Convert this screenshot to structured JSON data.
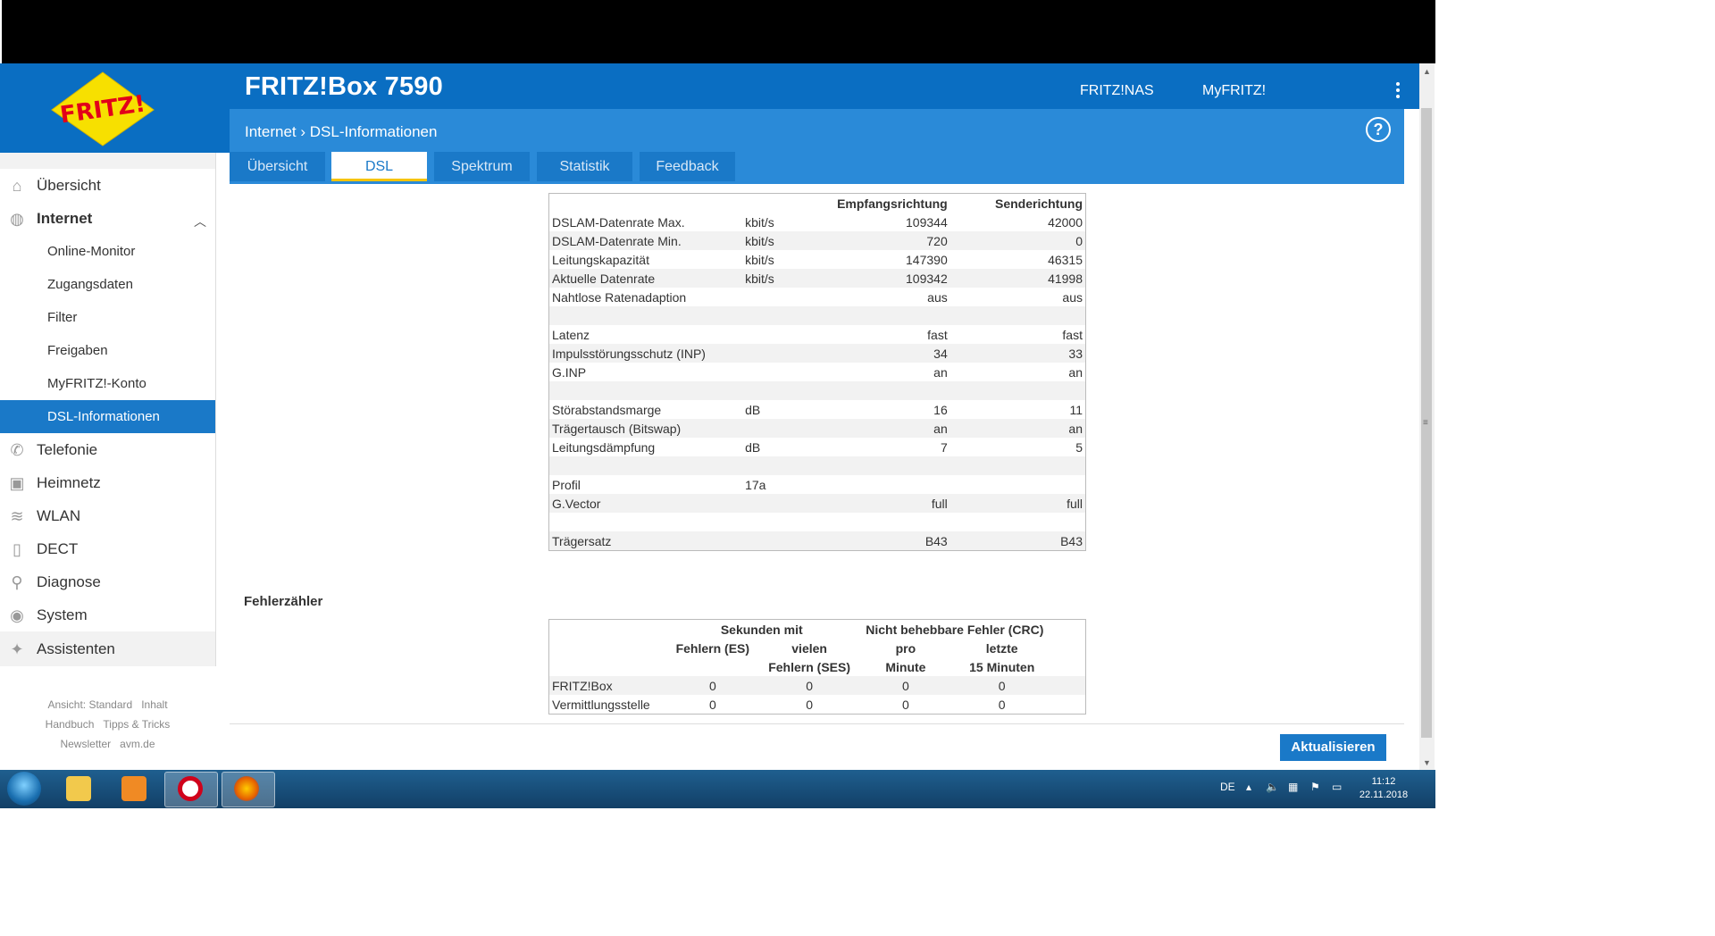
{
  "header": {
    "title": "FRITZ!Box 7590",
    "links": [
      "FRITZ!NAS",
      "MyFRITZ!"
    ],
    "breadcrumb": "Internet › DSL-Informationen",
    "logo_text": "FRITZ!"
  },
  "tabs": [
    {
      "label": "Übersicht"
    },
    {
      "label": "DSL"
    },
    {
      "label": "Spektrum"
    },
    {
      "label": "Statistik"
    },
    {
      "label": "Feedback"
    }
  ],
  "sidebar": {
    "items": [
      {
        "label": "Übersicht"
      },
      {
        "label": "Internet"
      },
      {
        "label": "Telefonie"
      },
      {
        "label": "Heimnetz"
      },
      {
        "label": "WLAN"
      },
      {
        "label": "DECT"
      },
      {
        "label": "Diagnose"
      },
      {
        "label": "System"
      },
      {
        "label": "Assistenten"
      }
    ],
    "subitems": [
      {
        "label": "Online-Monitor"
      },
      {
        "label": "Zugangsdaten"
      },
      {
        "label": "Filter"
      },
      {
        "label": "Freigaben"
      },
      {
        "label": "MyFRITZ!-Konto"
      },
      {
        "label": "DSL-Informationen"
      }
    ],
    "footer": {
      "line1a": "Ansicht: Standard",
      "line1b": "Inhalt",
      "line2a": "Handbuch",
      "line2b": "Tipps & Tricks",
      "line3a": "Newsletter",
      "line3b": "avm.de"
    }
  },
  "dsl_table": {
    "headers": {
      "down": "Empfangsrichtung",
      "up": "Senderichtung"
    },
    "rows": [
      {
        "label": "DSLAM-Datenrate Max.",
        "unit": "kbit/s",
        "down": "109344",
        "up": "42000"
      },
      {
        "label": "DSLAM-Datenrate Min.",
        "unit": "kbit/s",
        "down": "720",
        "up": "0"
      },
      {
        "label": "Leitungskapazität",
        "unit": "kbit/s",
        "down": "147390",
        "up": "46315"
      },
      {
        "label": "Aktuelle Datenrate",
        "unit": "kbit/s",
        "down": "109342",
        "up": "41998"
      },
      {
        "label": "Nahtlose Ratenadaption",
        "unit": "",
        "down": "aus",
        "up": "aus"
      },
      {
        "label": "",
        "unit": "",
        "down": "",
        "up": ""
      },
      {
        "label": "Latenz",
        "unit": "",
        "down": "fast",
        "up": "fast"
      },
      {
        "label": "Impulsstörungsschutz (INP)",
        "unit": "",
        "down": "34",
        "up": "33"
      },
      {
        "label": "G.INP",
        "unit": "",
        "down": "an",
        "up": "an"
      },
      {
        "label": "",
        "unit": "",
        "down": "",
        "up": ""
      },
      {
        "label": "Störabstandsmarge",
        "unit": "dB",
        "down": "16",
        "up": "11"
      },
      {
        "label": "Trägertausch (Bitswap)",
        "unit": "",
        "down": "an",
        "up": "an"
      },
      {
        "label": "Leitungsdämpfung",
        "unit": "dB",
        "down": "7",
        "up": "5"
      },
      {
        "label": "",
        "unit": "",
        "down": "",
        "up": ""
      },
      {
        "label": "Profil",
        "unit": "17a",
        "down": "",
        "up": ""
      },
      {
        "label": "G.Vector",
        "unit": "",
        "down": "full",
        "up": "full"
      },
      {
        "label": "",
        "unit": "",
        "down": "",
        "up": ""
      },
      {
        "label": "Trägersatz",
        "unit": "",
        "down": "B43",
        "up": "B43"
      }
    ]
  },
  "error_counter": {
    "title": "Fehlerzähler",
    "group1": "Sekunden mit",
    "group2": "Nicht behebbare Fehler (CRC)",
    "col1a": "Fehlern (ES)",
    "col2a": "vielen",
    "col2b": "Fehlern (SES)",
    "col3a": "pro",
    "col3b": "Minute",
    "col4a": "letzte",
    "col4b": "15 Minuten",
    "rows": [
      {
        "label": "FRITZ!Box",
        "es": "0",
        "ses": "0",
        "crc_min": "0",
        "crc_15": "0"
      },
      {
        "label": "Vermittlungsstelle",
        "es": "0",
        "ses": "0",
        "crc_min": "0",
        "crc_15": "0"
      }
    ]
  },
  "buttons": {
    "refresh": "Aktualisieren"
  },
  "taskbar": {
    "lang": "DE",
    "time": "11:12",
    "date": "22.11.2018"
  },
  "colors": {
    "brand_blue": "#0a6ec2",
    "tab_blue": "#1a79c8",
    "accent_yellow": "#f7c400"
  }
}
